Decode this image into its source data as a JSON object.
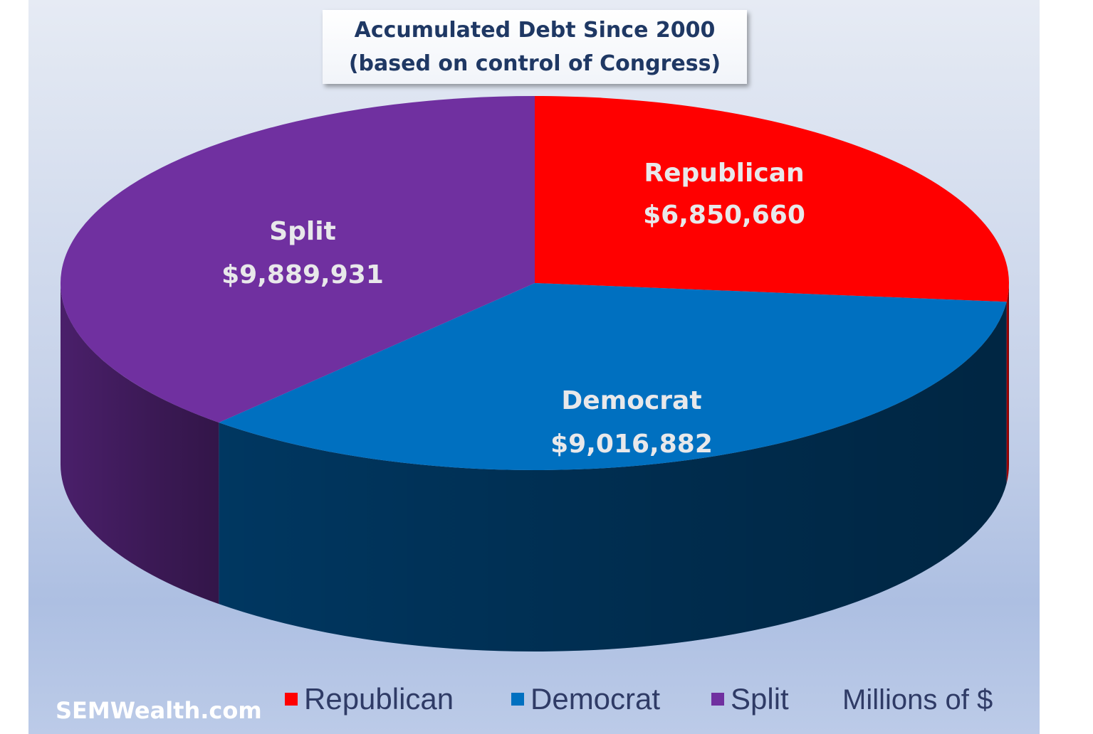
{
  "chart_data": {
    "type": "pie",
    "title": "Accumulated Debt Since 2000",
    "subtitle": "(based on control of Congress)",
    "units_note": "Millions of $",
    "slices": [
      {
        "name": "Republican",
        "value": 6850660,
        "value_label": "$6,850,660",
        "color": "#ff0000",
        "side_color": "#c00000"
      },
      {
        "name": "Democrat",
        "value": 9016882,
        "value_label": "$9,016,882",
        "color": "#0070c0",
        "side_color": "#003a66"
      },
      {
        "name": "Split",
        "value": 9889931,
        "value_label": "$9,889,931",
        "color": "#7030a0",
        "side_color": "#4e2170"
      }
    ],
    "legend_placement": "bottom"
  },
  "watermark": "SEMWealth.com"
}
